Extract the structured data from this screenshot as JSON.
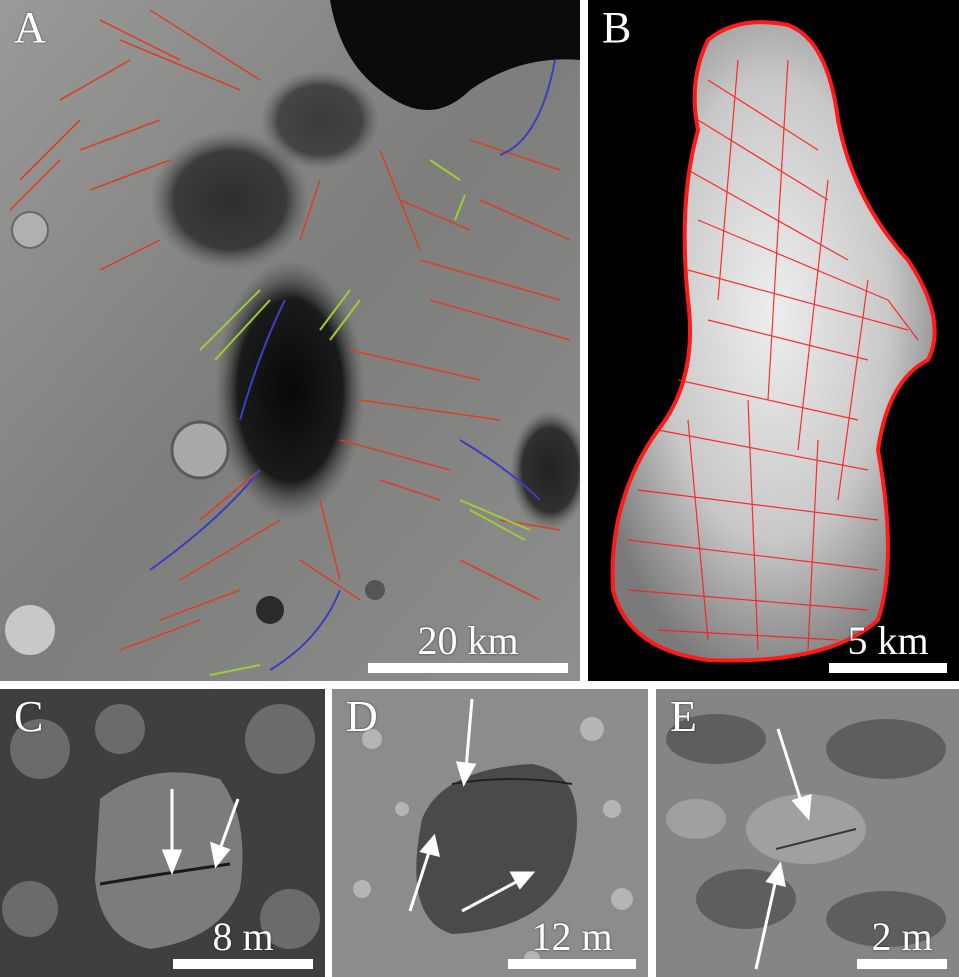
{
  "panels": {
    "a": {
      "label": "A",
      "scale_text": "20 km"
    },
    "b": {
      "label": "B",
      "scale_text": "5 km"
    },
    "c": {
      "label": "C",
      "scale_text": "8 m"
    },
    "d": {
      "label": "D",
      "scale_text": "12 m"
    },
    "e": {
      "label": "E",
      "scale_text": "2 m"
    }
  },
  "colors": {
    "lineament_red": "#d8402a",
    "lineament_green": "#9ccc3a",
    "lineament_blue": "#3a3fc0",
    "model_red": "#ff1a1a",
    "arrow": "#ffffff"
  }
}
